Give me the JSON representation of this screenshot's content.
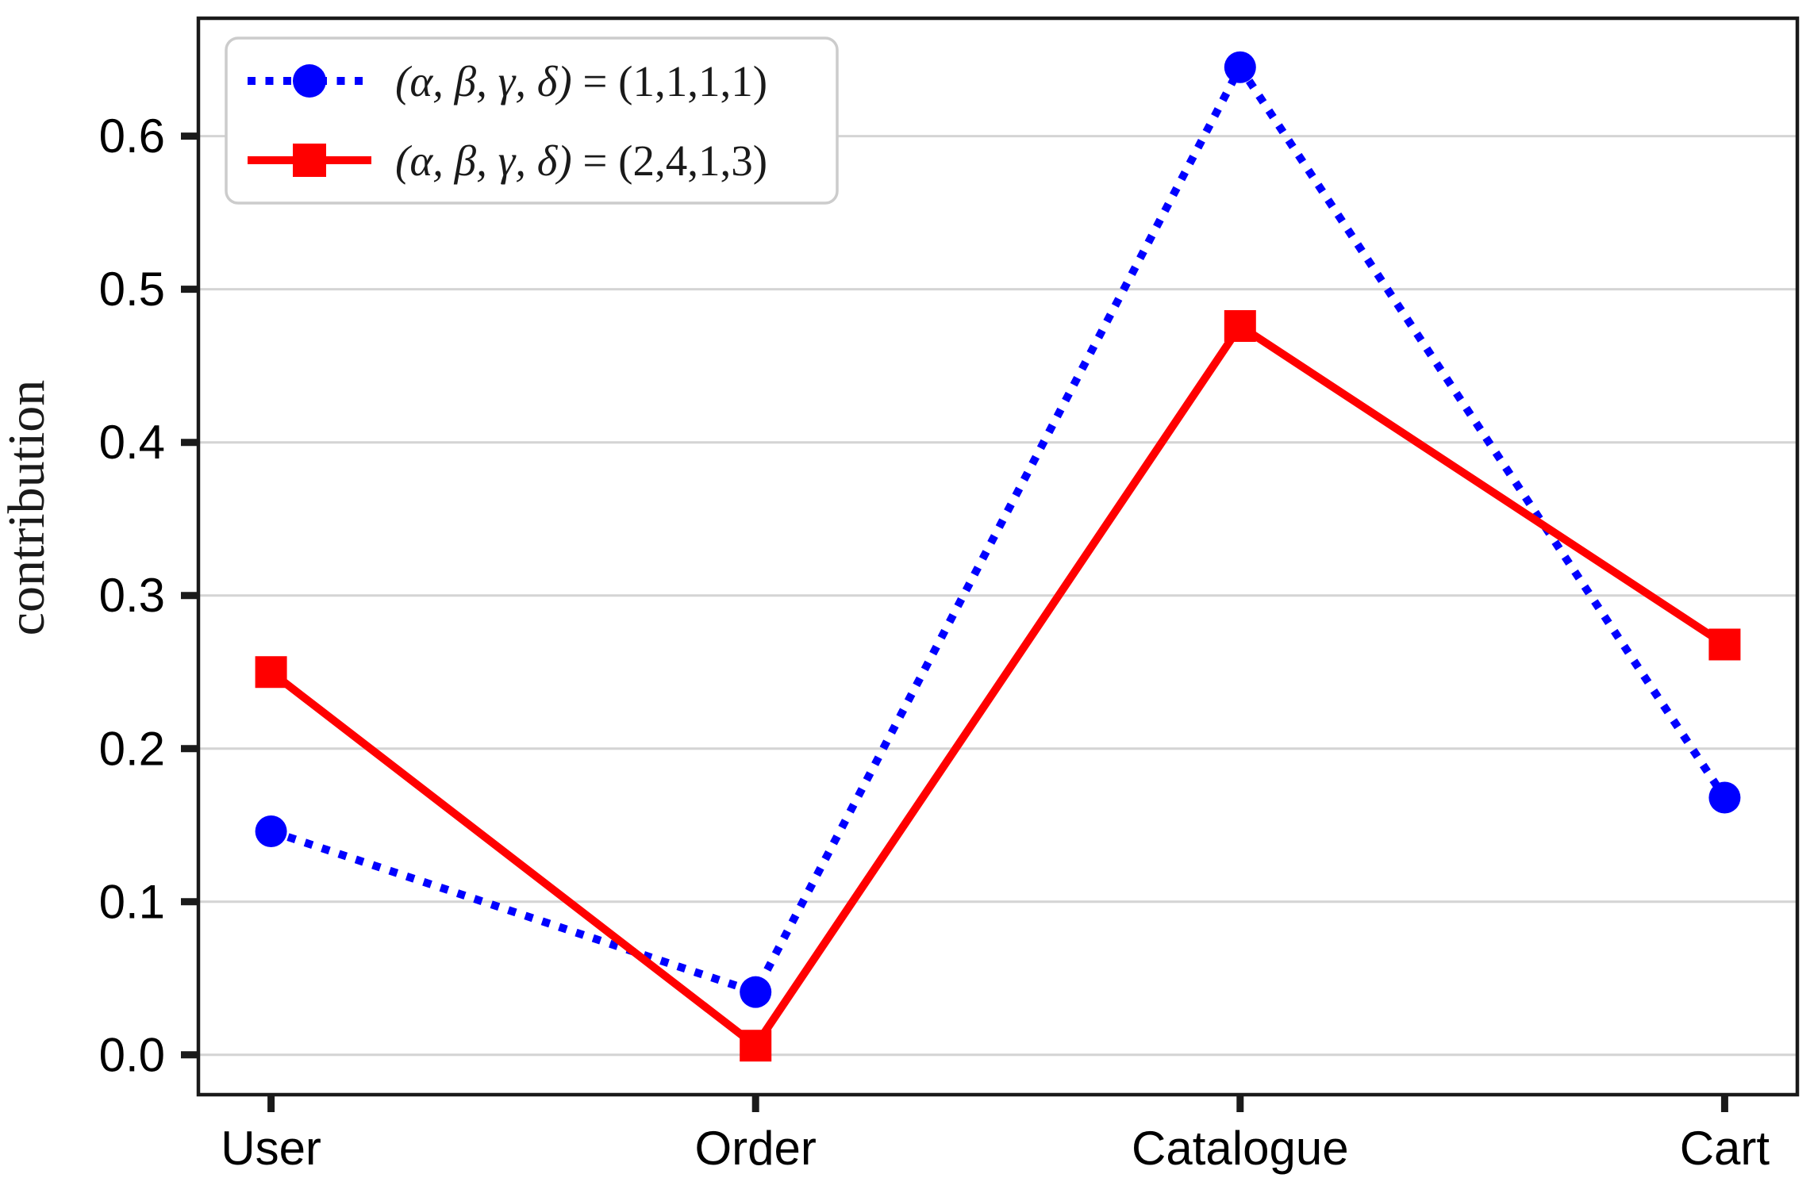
{
  "chart_data": {
    "type": "line",
    "title": "",
    "xlabel": "",
    "ylabel": "contribution",
    "categories": [
      "User",
      "Order",
      "Catalogue",
      "Cart"
    ],
    "series": [
      {
        "name": "(α, β, γ, δ) = (1,1,1,1)",
        "values": [
          0.146,
          0.041,
          0.645,
          0.168
        ],
        "color": "#0000ff",
        "line_style": "dotted",
        "marker": "circle"
      },
      {
        "name": "(α, β, γ, δ) = (2,4,1,3)",
        "values": [
          0.25,
          0.006,
          0.476,
          0.268
        ],
        "color": "#ff0000",
        "line_style": "solid",
        "marker": "square"
      }
    ],
    "xlim": [
      -0.15,
      3.15
    ],
    "ylim": [
      -0.026,
      0.677
    ],
    "yticks": [
      0.0,
      0.1,
      0.2,
      0.3,
      0.4,
      0.5,
      0.6
    ],
    "ytick_labels": [
      "0.0",
      "0.1",
      "0.2",
      "0.3",
      "0.4",
      "0.5",
      "0.6"
    ],
    "grid": "horizontal",
    "legend_position": "upper-left",
    "style_colors": {
      "grid": "#d4d4d4",
      "spine": "#1a1a1a",
      "legend_border": "#cccccc",
      "background": "#ffffff"
    }
  }
}
